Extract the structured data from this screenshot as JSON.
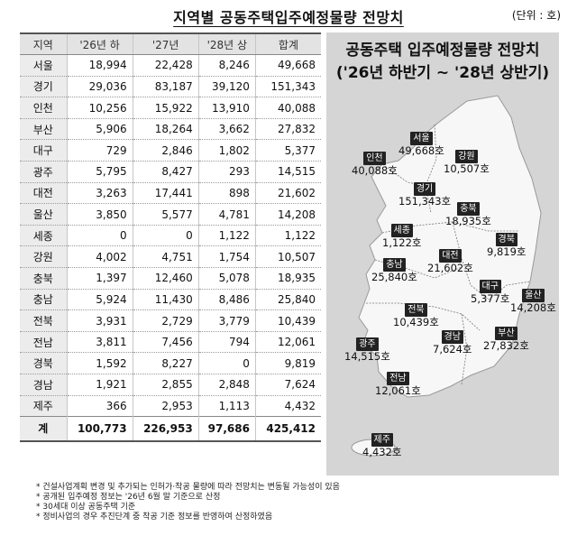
{
  "header": {
    "title": "지역별 공동주택입주예정물량 전망치",
    "unit": "(단위 : 호)"
  },
  "table": {
    "columns": [
      "지역",
      "'26년 하",
      "'27년",
      "'28년 상",
      "합계"
    ],
    "rows": [
      [
        "서울",
        "18,994",
        "22,428",
        "8,246",
        "49,668"
      ],
      [
        "경기",
        "29,036",
        "83,187",
        "39,120",
        "151,343"
      ],
      [
        "인천",
        "10,256",
        "15,922",
        "13,910",
        "40,088"
      ],
      [
        "부산",
        "5,906",
        "18,264",
        "3,662",
        "27,832"
      ],
      [
        "대구",
        "729",
        "2,846",
        "1,802",
        "5,377"
      ],
      [
        "광주",
        "5,795",
        "8,427",
        "293",
        "14,515"
      ],
      [
        "대전",
        "3,263",
        "17,441",
        "898",
        "21,602"
      ],
      [
        "울산",
        "3,850",
        "5,577",
        "4,781",
        "14,208"
      ],
      [
        "세종",
        "0",
        "0",
        "1,122",
        "1,122"
      ],
      [
        "강원",
        "4,002",
        "4,751",
        "1,754",
        "10,507"
      ],
      [
        "충북",
        "1,397",
        "12,460",
        "5,078",
        "18,935"
      ],
      [
        "충남",
        "5,924",
        "11,430",
        "8,486",
        "25,840"
      ],
      [
        "전북",
        "3,931",
        "2,729",
        "3,779",
        "10,439"
      ],
      [
        "전남",
        "3,811",
        "7,456",
        "794",
        "12,061"
      ],
      [
        "경북",
        "1,592",
        "8,227",
        "0",
        "9,819"
      ],
      [
        "경남",
        "1,921",
        "2,855",
        "2,848",
        "7,624"
      ],
      [
        "제주",
        "366",
        "2,953",
        "1,113",
        "4,432"
      ]
    ],
    "total": [
      "계",
      "100,773",
      "226,953",
      "97,686",
      "425,412"
    ]
  },
  "map": {
    "title_line1": "공동주택 입주예정물량 전망치",
    "title_line2": "('26년 하반기 ~ '28년 상반기)",
    "land_color": "#f7f7f7",
    "background_color": "#d5d5d5",
    "regions": [
      {
        "name": "서울",
        "value": "49,668호"
      },
      {
        "name": "인천",
        "value": "40,088호"
      },
      {
        "name": "강원",
        "value": "10,507호"
      },
      {
        "name": "경기",
        "value": "151,343호"
      },
      {
        "name": "충북",
        "value": "18,935호"
      },
      {
        "name": "세종",
        "value": "1,122호"
      },
      {
        "name": "경북",
        "value": "9,819호"
      },
      {
        "name": "대전",
        "value": "21,602호"
      },
      {
        "name": "충남",
        "value": "25,840호"
      },
      {
        "name": "대구",
        "value": "5,377호"
      },
      {
        "name": "울산",
        "value": "14,208호"
      },
      {
        "name": "전북",
        "value": "10,439호"
      },
      {
        "name": "경남",
        "value": "7,624호"
      },
      {
        "name": "부산",
        "value": "27,832호"
      },
      {
        "name": "광주",
        "value": "14,515호"
      },
      {
        "name": "전남",
        "value": "12,061호"
      },
      {
        "name": "제주",
        "value": "4,432호"
      }
    ]
  },
  "notes": [
    "건설사업계획 변경 및 추가되는 인허가·착공 물량에 따라 전망치는 변동될 가능성이 있음",
    "공개된 입주예정 정보는 '26년 6월 말 기준으로 산정",
    "30세대 이상 공동주택 기준",
    "정비사업의 경우 추진단계 중 착공 기준 정보를 반영하여 산정하였음"
  ]
}
